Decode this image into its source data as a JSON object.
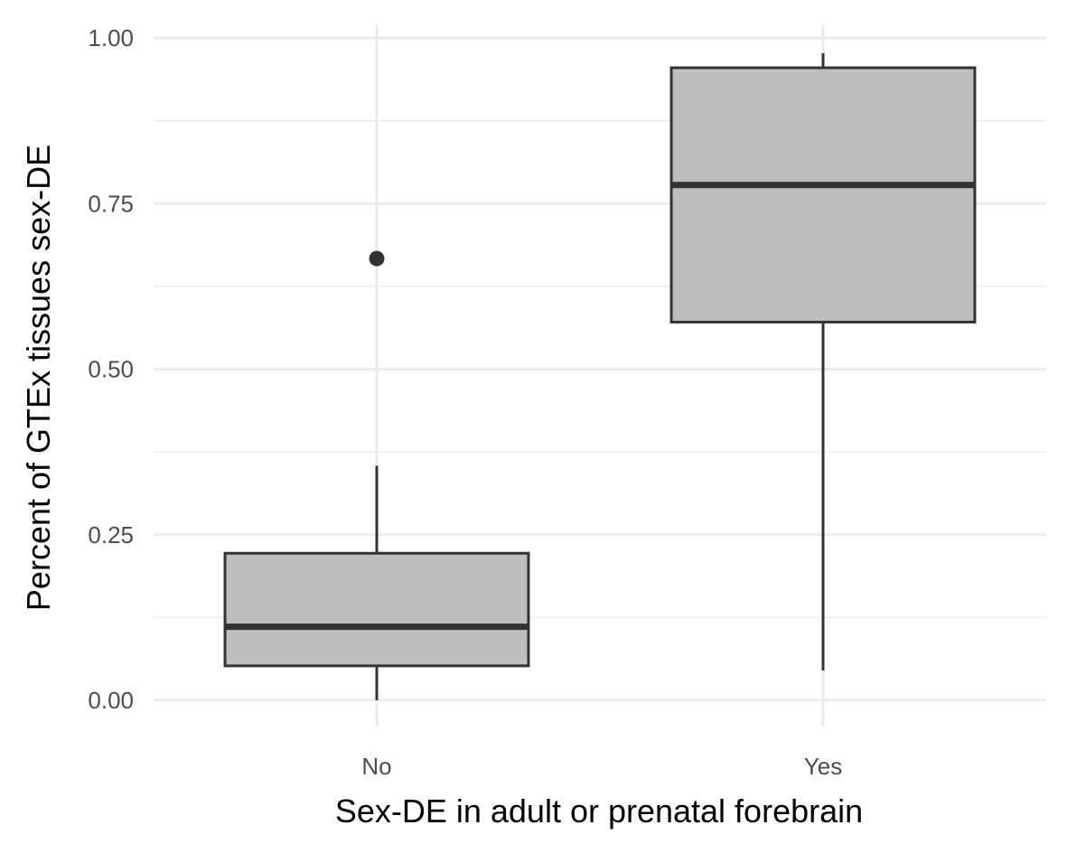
{
  "chart_data": {
    "type": "boxplot",
    "xlabel": "Sex-DE in adult or prenatal forebrain",
    "ylabel": "Percent of GTEx tissues sex-DE",
    "categories": [
      "No",
      "Yes"
    ],
    "ylim": [
      -0.04,
      1.02
    ],
    "yticks": [
      0.0,
      0.25,
      0.5,
      0.75,
      1.0
    ],
    "ytick_labels": [
      "0.00",
      "0.25",
      "0.50",
      "0.75",
      "1.00"
    ],
    "grid": true,
    "box_fill": "#bebebe",
    "line_color": "#333333",
    "grid_color": "#ebebeb",
    "boxes": [
      {
        "category": "No",
        "whisker_low": 0.0,
        "q1": 0.052,
        "median": 0.111,
        "q3": 0.222,
        "whisker_high": 0.354,
        "outliers": [
          0.667
        ]
      },
      {
        "category": "Yes",
        "whisker_low": 0.045,
        "q1": 0.571,
        "median": 0.778,
        "q3": 0.955,
        "whisker_high": 0.977,
        "outliers": []
      }
    ]
  }
}
